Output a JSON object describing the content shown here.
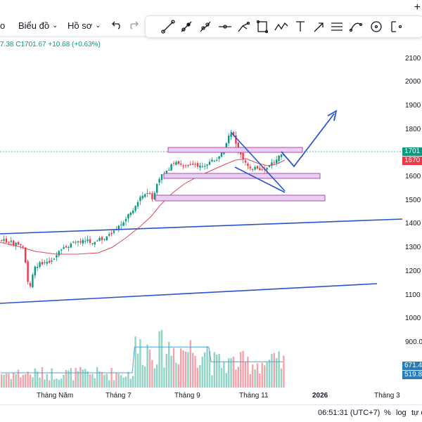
{
  "toolbar": {
    "left_fragment": "o",
    "chart_menu": "Biểu đồ",
    "template_menu": "Hồ sơ",
    "plus_label": "+"
  },
  "drawing_tools": [
    "line-icon",
    "ray-icon",
    "extended-line-icon",
    "horizontal-line-icon",
    "brush-icon",
    "rectangle-icon",
    "path-icon",
    "text-icon",
    "arrow-icon",
    "parallel-channel-icon",
    "curve-icon",
    "circle-icon",
    "fib-icon"
  ],
  "legend": {
    "ohlc_text": "7.38  C1701.67  +10.68 (+0.63%)"
  },
  "price_axis": [
    "2100",
    "2000",
    "1900",
    "1800",
    "1600",
    "1500",
    "1400",
    "1300",
    "1200",
    "1100",
    "1000",
    "900.0"
  ],
  "price_tags": {
    "last_price": "1701",
    "ma_value": "1670",
    "vol_value_1": "671.4",
    "vol_value_2": "519.8"
  },
  "time_axis": [
    "Tháng Năm",
    "Tháng 7",
    "Tháng 9",
    "Tháng 11",
    "2026",
    "Tháng 3"
  ],
  "bottom_bar": {
    "time": "06:51:31 (UTC+7)",
    "percent": "%",
    "log": "log",
    "auto": "tự đ"
  },
  "colors": {
    "up": "#089981",
    "down": "#f23645",
    "ma": "#e0485b",
    "trendline": "#2a54c9",
    "zone_fill": "#e8d0f0",
    "zone_border": "#b04ab8",
    "volume_ma": "#4aa3d8",
    "last_price_tag": "#089981",
    "ma_tag": "#f23645",
    "vol_tag": "#2a7bb8"
  }
}
